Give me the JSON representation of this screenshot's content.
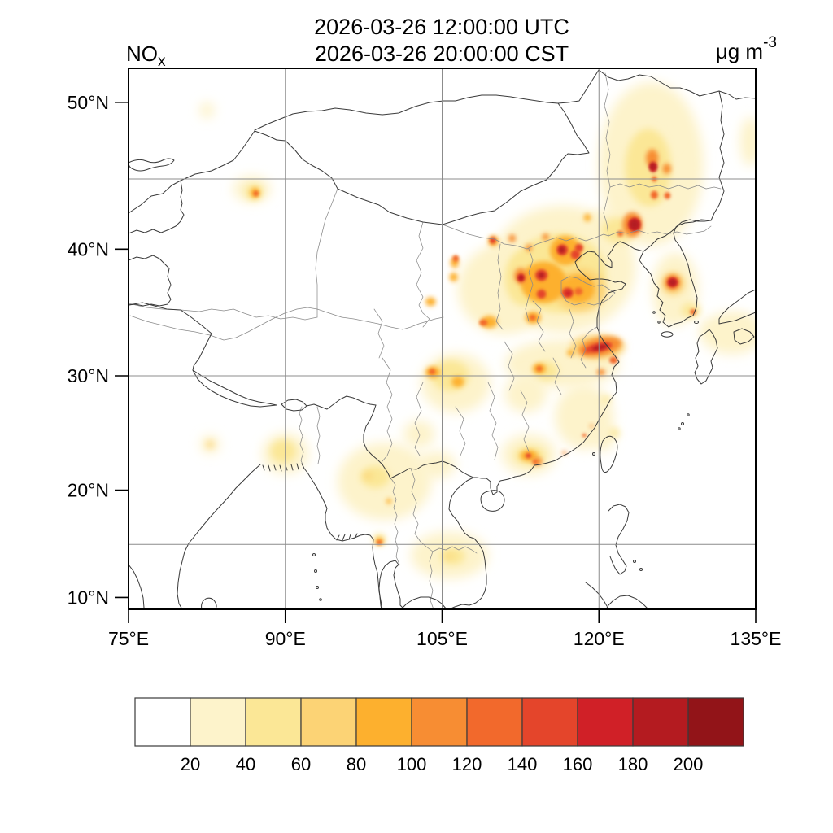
{
  "header": {
    "species": {
      "base": "NO",
      "sub": "x"
    },
    "title_line1": "2026-03-26 12:00:00 UTC",
    "title_line2": "2026-03-26 20:00:00 CST",
    "units": {
      "base": "μg m",
      "sup": "-3"
    }
  },
  "axes": {
    "lat_ticks": [
      {
        "label": "50°N",
        "lat": 50
      },
      {
        "label": "40°N",
        "lat": 40
      },
      {
        "label": "30°N",
        "lat": 30
      },
      {
        "label": "20°N",
        "lat": 20
      },
      {
        "label": "10°N",
        "lat": 10
      }
    ],
    "lon_ticks": [
      {
        "label": "75°E",
        "lon": 75
      },
      {
        "label": "90°E",
        "lon": 90
      },
      {
        "label": "105°E",
        "lon": 105
      },
      {
        "label": "120°E",
        "lon": 120
      },
      {
        "label": "135°E",
        "lon": 135
      }
    ],
    "grid_lats": [
      45,
      30,
      15
    ],
    "grid_lons": [
      90,
      105,
      120
    ]
  },
  "colorbar": {
    "thresholds": [
      20,
      40,
      60,
      80,
      100,
      120,
      140,
      160,
      180,
      200
    ],
    "labels": [
      "20",
      "40",
      "60",
      "80",
      "100",
      "120",
      "140",
      "160",
      "180",
      "200"
    ],
    "colors": [
      "#ffffff",
      "#fdf3cb",
      "#fbe796",
      "#fcd375",
      "#fdb02e",
      "#f78d33",
      "#f2692c",
      "#e4452b",
      "#d02027",
      "#b41b20",
      "#921418"
    ]
  },
  "chart_data": {
    "type": "heatmap",
    "variable": "NOx",
    "units": "μg m-3",
    "time_utc": "2026-03-26 12:00:00 UTC",
    "time_local": "2026-03-26 20:00:00 CST",
    "projection": "mercator",
    "lon_range": [
      75,
      135
    ],
    "lat_range": [
      9,
      52
    ],
    "grid": true,
    "colorbar_position": "bottom",
    "hotspots": [
      [
        116.5,
        38.5,
        30,
        7.0,
        4.8
      ],
      [
        125.0,
        46.0,
        30,
        5.0,
        5.5
      ],
      [
        111.0,
        37.0,
        30,
        4.5,
        3.5
      ],
      [
        106.3,
        29.4,
        30,
        3.3,
        2.5
      ],
      [
        116.5,
        31.0,
        25,
        5.5,
        2.0
      ],
      [
        118.6,
        26.5,
        25,
        2.8,
        2.8
      ],
      [
        113.3,
        23.2,
        30,
        2.6,
        1.8
      ],
      [
        99.5,
        20.8,
        25,
        4.5,
        3.5
      ],
      [
        105.7,
        14.0,
        25,
        3.7,
        2.2
      ],
      [
        127.3,
        37.0,
        30,
        2.2,
        2.8
      ],
      [
        132.7,
        33.5,
        25,
        3.0,
        1.7
      ],
      [
        86.8,
        44.3,
        30,
        1.8,
        0.9
      ],
      [
        90.0,
        23.3,
        25,
        2.2,
        1.8
      ],
      [
        134.5,
        47.5,
        25,
        1.0,
        1.6
      ],
      [
        126.3,
        48.5,
        30,
        1.3,
        1.3
      ],
      [
        121.0,
        41.3,
        35,
        2.5,
        1.6
      ],
      [
        120.5,
        24.7,
        30,
        0.9,
        1.2
      ],
      [
        98.6,
        21.2,
        40,
        1.4,
        1.0
      ],
      [
        104.5,
        22.3,
        25,
        1.8,
        1.2
      ],
      [
        82.5,
        49.5,
        25,
        0.7,
        0.5
      ],
      [
        113.0,
        28.5,
        25,
        2.0,
        1.6
      ],
      [
        102.8,
        25.0,
        25,
        1.5,
        1.2
      ],
      [
        82.8,
        24.1,
        30,
        0.9,
        0.8
      ],
      [
        99.0,
        15.5,
        50,
        0.6,
        0.5
      ],
      [
        126.9,
        35.5,
        35,
        0.9,
        1.0
      ],
      [
        130.8,
        33.8,
        35,
        0.9,
        0.5
      ],
      [
        133.5,
        34.3,
        30,
        1.3,
        0.5
      ],
      [
        116.2,
        38.2,
        50,
        4.5,
        3.0
      ],
      [
        124.7,
        45.8,
        45,
        2.2,
        2.6
      ],
      [
        112.8,
        37.8,
        55,
        1.8,
        2.1
      ],
      [
        118.2,
        36.9,
        60,
        2.5,
        1.7
      ],
      [
        119.9,
        32.4,
        60,
        2.6,
        1.0
      ],
      [
        127.1,
        37.4,
        70,
        1.1,
        0.85
      ],
      [
        105.8,
        30.0,
        50,
        1.8,
        1.3
      ],
      [
        113.4,
        23.1,
        50,
        1.5,
        0.85
      ],
      [
        115.0,
        30.4,
        50,
        1.1,
        0.8
      ],
      [
        87.0,
        44.1,
        55,
        0.85,
        0.55
      ],
      [
        125.2,
        44.0,
        50,
        1.0,
        0.7
      ],
      [
        128.8,
        35.3,
        50,
        0.9,
        0.6
      ],
      [
        106.0,
        13.9,
        45,
        1.2,
        0.8
      ],
      [
        89.8,
        23.5,
        40,
        1.2,
        1.0
      ],
      [
        97.9,
        21.3,
        60,
        0.4,
        0.3
      ],
      [
        82.8,
        24.1,
        60,
        0.35,
        0.3
      ],
      [
        121.5,
        25.1,
        50,
        0.5,
        0.4
      ],
      [
        120.7,
        28.0,
        55,
        0.45,
        0.3
      ],
      [
        105.7,
        13.9,
        70,
        0.3,
        0.25
      ],
      [
        121.8,
        41.4,
        55,
        1.5,
        0.9
      ],
      [
        116.8,
        39.9,
        90,
        1.5,
        1.1
      ],
      [
        114.7,
        37.5,
        95,
        2.2,
        1.6
      ],
      [
        118.0,
        37.0,
        90,
        1.6,
        1.1
      ],
      [
        123.2,
        41.8,
        110,
        0.95,
        0.9
      ],
      [
        125.1,
        46.4,
        110,
        0.6,
        0.6
      ],
      [
        120.1,
        32.4,
        110,
        2.1,
        0.75,
        -12
      ],
      [
        127.05,
        37.5,
        110,
        0.75,
        0.6
      ],
      [
        112.5,
        38.0,
        100,
        0.6,
        0.6
      ],
      [
        109.5,
        34.4,
        90,
        0.8,
        0.5
      ],
      [
        104.1,
        30.3,
        90,
        0.7,
        0.5
      ],
      [
        106.5,
        29.5,
        85,
        0.6,
        0.45
      ],
      [
        114.3,
        30.6,
        90,
        0.65,
        0.45
      ],
      [
        113.3,
        23.1,
        90,
        0.85,
        0.5
      ],
      [
        113.7,
        34.75,
        85,
        0.75,
        0.5
      ],
      [
        103.9,
        36.0,
        80,
        0.5,
        0.35
      ],
      [
        87.1,
        44.05,
        90,
        0.45,
        0.35
      ],
      [
        109.9,
        40.6,
        90,
        0.5,
        0.4
      ],
      [
        106.2,
        39.0,
        85,
        0.4,
        0.4
      ],
      [
        106.1,
        37.9,
        85,
        0.4,
        0.35
      ],
      [
        99.0,
        15.3,
        90,
        0.4,
        0.35
      ],
      [
        99.9,
        19.0,
        90,
        0.25,
        0.25
      ],
      [
        114.1,
        22.6,
        100,
        0.5,
        0.35
      ],
      [
        117.3,
        31.9,
        90,
        0.35,
        0.28
      ],
      [
        120.2,
        30.3,
        100,
        0.4,
        0.28
      ],
      [
        111.7,
        40.8,
        100,
        0.35,
        0.28
      ],
      [
        114.9,
        40.9,
        100,
        0.32,
        0.25
      ],
      [
        113.3,
        40.1,
        105,
        0.32,
        0.25
      ],
      [
        118.9,
        42.3,
        95,
        0.35,
        0.28
      ],
      [
        126.5,
        45.7,
        100,
        0.4,
        0.35
      ],
      [
        116.5,
        39.95,
        150,
        0.55,
        0.42
      ],
      [
        117.75,
        39.6,
        140,
        0.45,
        0.35
      ],
      [
        118.1,
        40.1,
        140,
        0.4,
        0.3
      ],
      [
        114.5,
        38.05,
        155,
        0.6,
        0.45
      ],
      [
        117.0,
        36.7,
        145,
        0.55,
        0.4
      ],
      [
        114.5,
        36.6,
        140,
        0.45,
        0.35
      ],
      [
        118.05,
        36.8,
        135,
        0.4,
        0.3
      ],
      [
        120.0,
        32.35,
        150,
        1.3,
        0.38,
        -12
      ],
      [
        121.4,
        31.3,
        130,
        0.4,
        0.3
      ],
      [
        123.4,
        41.8,
        160,
        0.6,
        0.5
      ],
      [
        125.2,
        45.8,
        160,
        0.4,
        0.35
      ],
      [
        125.3,
        43.9,
        135,
        0.35,
        0.3
      ],
      [
        126.55,
        43.85,
        130,
        0.3,
        0.25
      ],
      [
        127.05,
        37.5,
        160,
        0.5,
        0.38
      ],
      [
        129.0,
        35.2,
        130,
        0.28,
        0.22
      ],
      [
        112.55,
        37.85,
        160,
        0.35,
        0.3
      ],
      [
        108.95,
        34.35,
        130,
        0.4,
        0.25
      ],
      [
        104.05,
        30.35,
        130,
        0.3,
        0.25
      ],
      [
        114.3,
        30.6,
        130,
        0.28,
        0.22
      ],
      [
        113.25,
        23.1,
        140,
        0.28,
        0.22
      ],
      [
        113.9,
        22.55,
        130,
        0.22,
        0.18
      ],
      [
        113.65,
        34.75,
        130,
        0.3,
        0.22
      ],
      [
        87.2,
        44.0,
        135,
        0.26,
        0.2
      ],
      [
        109.85,
        40.65,
        140,
        0.3,
        0.25
      ],
      [
        106.3,
        39.3,
        130,
        0.3,
        0.25
      ],
      [
        122.05,
        41.15,
        130,
        0.28,
        0.22
      ],
      [
        99.0,
        15.2,
        120,
        0.25,
        0.22
      ],
      [
        118.6,
        24.9,
        120,
        0.2,
        0.15
      ],
      [
        119.3,
        25.7,
        115,
        0.18,
        0.14
      ],
      [
        116.7,
        23.35,
        115,
        0.22,
        0.16
      ],
      [
        118.8,
        32.05,
        125,
        0.3,
        0.22
      ],
      [
        125.3,
        45.0,
        120,
        0.25,
        0.2
      ],
      [
        123.4,
        41.8,
        195,
        0.42,
        0.35
      ],
      [
        125.15,
        45.85,
        185,
        0.28,
        0.25
      ],
      [
        116.45,
        39.95,
        185,
        0.3,
        0.25
      ],
      [
        114.5,
        38.05,
        185,
        0.3,
        0.22
      ],
      [
        120.1,
        32.35,
        195,
        0.75,
        0.2,
        -12
      ],
      [
        127.05,
        37.5,
        195,
        0.3,
        0.22
      ],
      [
        112.55,
        37.85,
        195,
        0.22,
        0.18
      ],
      [
        117.05,
        36.65,
        175,
        0.3,
        0.2
      ]
    ]
  }
}
